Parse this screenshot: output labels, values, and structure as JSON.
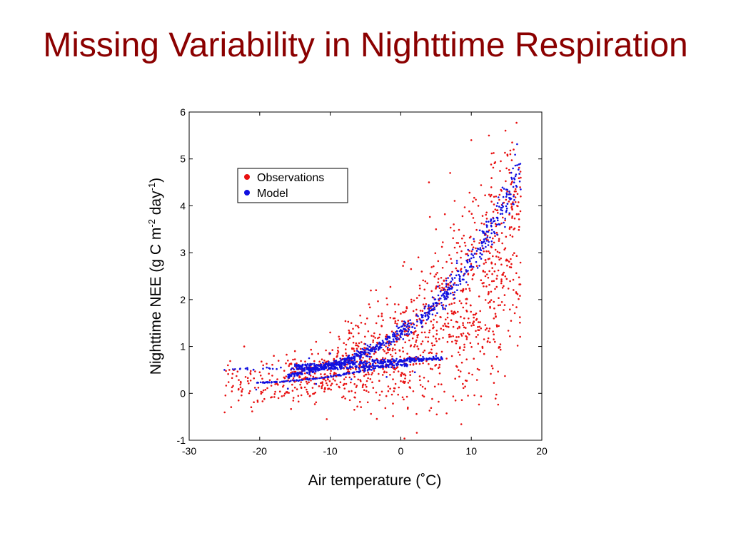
{
  "slide": {
    "title": "Missing Variability in Nighttime Respiration"
  },
  "colors": {
    "title": "#8b0000",
    "observations": "#e81010",
    "model": "#1010e0"
  },
  "chart_data": {
    "type": "scatter",
    "title": "",
    "xlabel": "Air temperature (˚C)",
    "ylabel_parts": {
      "main": "Nighttime NEE (g C m",
      "sup1": "-2",
      "mid": " day",
      "sup2": "-1",
      "end": ")"
    },
    "xlim": [
      -30,
      20
    ],
    "ylim": [
      -1,
      6
    ],
    "xticks": [
      -30,
      -20,
      -10,
      0,
      10,
      20
    ],
    "yticks": [
      -1,
      0,
      1,
      2,
      3,
      4,
      5,
      6
    ],
    "grid": false,
    "legend_position": "top-left",
    "series": [
      {
        "name": "Observations",
        "color": "#e81010",
        "description_points": "scattered red points rising exponentially with temperature"
      },
      {
        "name": "Model",
        "color": "#1010e0",
        "description_points": "blue points on several tight exponential curves"
      }
    ],
    "sample_points": {
      "Observations": [
        [
          -24.5,
          0.6
        ],
        [
          -24.3,
          0.5
        ],
        [
          -22.2,
          1.0
        ],
        [
          -22.0,
          0.35
        ],
        [
          -20.0,
          0.45
        ],
        [
          -19.5,
          0.6
        ],
        [
          -18.0,
          0.8
        ],
        [
          -17.5,
          0.3
        ],
        [
          -16.0,
          0.7
        ],
        [
          -15.0,
          0.9
        ],
        [
          -14.0,
          0.5
        ],
        [
          -13.5,
          0.3
        ],
        [
          -12.0,
          1.1
        ],
        [
          -11.5,
          0.6
        ],
        [
          -10.5,
          -0.55
        ],
        [
          -10.0,
          1.3
        ],
        [
          -9.0,
          0.8
        ],
        [
          -8.0,
          0.2
        ],
        [
          -7.0,
          1.5
        ],
        [
          -6.0,
          1.0
        ],
        [
          -5.0,
          0.4
        ],
        [
          -4.5,
          1.9
        ],
        [
          -3.5,
          2.2
        ],
        [
          -2.0,
          1.2
        ],
        [
          -1.5,
          0.1
        ],
        [
          0.0,
          1.7
        ],
        [
          0.5,
          2.8
        ],
        [
          1.0,
          -0.3
        ],
        [
          1.5,
          2.0
        ],
        [
          2.5,
          2.9
        ],
        [
          3.0,
          1.3
        ],
        [
          4.0,
          4.5
        ],
        [
          5.0,
          3.5
        ],
        [
          6.0,
          2.2
        ],
        [
          7.0,
          4.7
        ],
        [
          8.0,
          3.0
        ],
        [
          9.0,
          1.6
        ],
        [
          10.0,
          5.4
        ],
        [
          11.0,
          4.0
        ],
        [
          12.0,
          2.5
        ],
        [
          12.5,
          5.5
        ],
        [
          13.5,
          4.2
        ],
        [
          14.0,
          3.0
        ],
        [
          15.0,
          4.8
        ],
        [
          15.8,
          5.35
        ],
        [
          16.0,
          5.2
        ],
        [
          16.5,
          4.0
        ],
        [
          17.0,
          4.6
        ]
      ],
      "Model": [
        [
          -25.0,
          0.5
        ],
        [
          -22.0,
          0.53
        ],
        [
          -20.5,
          0.08
        ],
        [
          -19.0,
          0.55
        ],
        [
          -17.0,
          0.55
        ],
        [
          -16.0,
          0.1
        ],
        [
          -15.0,
          0.62
        ],
        [
          -13.0,
          0.75
        ],
        [
          -12.0,
          0.2
        ],
        [
          -10.0,
          0.85
        ],
        [
          -8.0,
          0.68
        ],
        [
          -7.0,
          0.3
        ],
        [
          -5.0,
          1.05
        ],
        [
          -4.0,
          0.72
        ],
        [
          -2.0,
          0.35
        ],
        [
          0.0,
          1.35
        ],
        [
          1.0,
          0.75
        ],
        [
          2.0,
          0.45
        ],
        [
          3.0,
          1.55
        ],
        [
          5.0,
          0.8
        ],
        [
          6.0,
          1.8
        ],
        [
          8.0,
          2.2
        ],
        [
          10.0,
          2.7
        ],
        [
          12.0,
          3.2
        ],
        [
          14.0,
          3.6
        ],
        [
          15.0,
          3.9
        ],
        [
          16.0,
          4.2
        ],
        [
          17.0,
          4.35
        ]
      ]
    }
  }
}
